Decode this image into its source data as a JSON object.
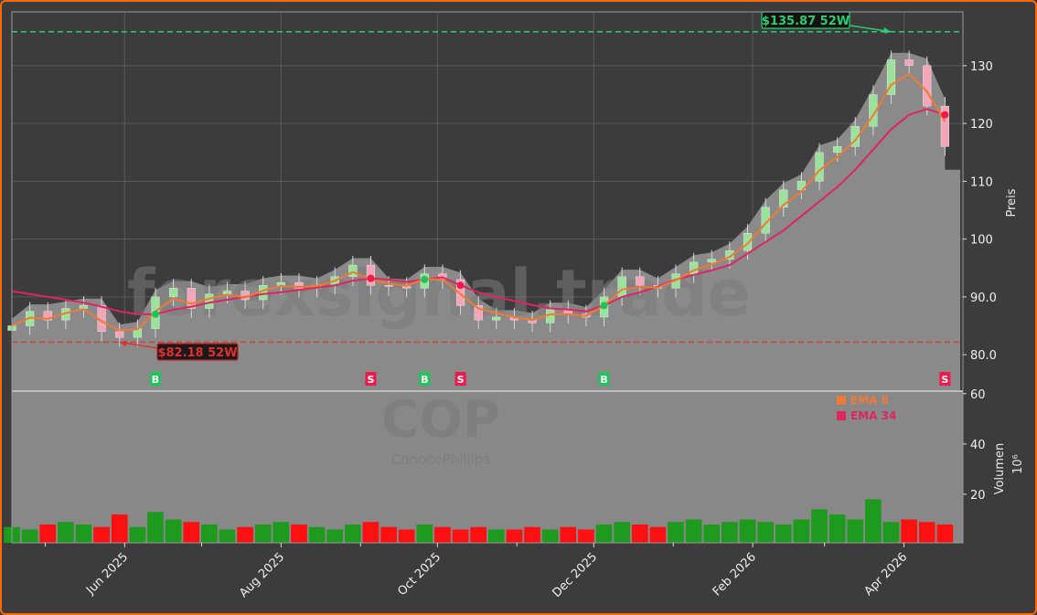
{
  "chart_data": {
    "type": "candlestick",
    "symbol": "COP",
    "company": "ConocoPhillips",
    "watermark": "forexsignal.trade",
    "ylabel": "Preis",
    "volume_label": "Volumen",
    "volume_unit": "10⁶",
    "xlim": [
      "2025-04-18",
      "2026-04-24"
    ],
    "ylim": [
      73.7,
      139.3
    ],
    "volume_ylim": [
      0,
      61
    ],
    "price_ticks": [
      80,
      90,
      100,
      110,
      120,
      130
    ],
    "price_tick_labels": [
      "80.0",
      "90.0",
      "100",
      "110",
      "120",
      "130"
    ],
    "volume_ticks": [
      20,
      40,
      60
    ],
    "volume_tick_labels": [
      "20",
      "40",
      "60"
    ],
    "date_ticks": [
      "2025-06-01",
      "2025-08-01",
      "2025-10-01",
      "2025-12-01",
      "2026-02-01",
      "2026-04-01"
    ],
    "date_tick_labels": [
      "Jun 2025",
      "Aug 2025",
      "Oct 2025",
      "Dec 2025",
      "Feb 2026",
      "Apr 2026"
    ],
    "grid": true,
    "colors": {
      "up": "#9be39b",
      "down": "#f2a6b8",
      "vol_up": "#1e9a1e",
      "vol_down": "#ff1010",
      "ema8": "#f07a35",
      "ema34": "#e0245e",
      "high": "#2ecc71",
      "low": "#e03030",
      "area": "#8a8a8a"
    },
    "start_date": "2025-04-18",
    "interval_days": 7,
    "close": [
      85,
      87.5,
      86,
      88,
      88.5,
      84,
      83,
      84.5,
      90,
      91.5,
      88,
      90.5,
      91,
      89.5,
      92,
      92.5,
      91.5,
      92,
      93.5,
      95.5,
      92,
      91.8,
      91.5,
      94,
      93,
      88.5,
      86,
      86.5,
      86,
      85.5,
      87.8,
      87,
      86.5,
      90,
      93.5,
      92,
      91.5,
      94,
      96,
      96.5,
      98,
      101,
      105.5,
      108.5,
      110,
      115,
      116,
      119.5,
      125,
      131,
      130,
      123,
      116
    ],
    "volume": [
      7,
      6,
      8,
      9,
      8,
      7,
      12,
      7,
      13,
      10,
      9,
      8,
      6,
      7,
      8,
      9,
      8,
      7,
      6,
      8,
      9,
      7,
      6,
      8,
      7,
      6,
      7,
      6,
      6,
      7,
      6,
      7,
      6,
      8,
      9,
      8,
      7,
      9,
      10,
      8,
      9,
      10,
      9,
      8,
      10,
      14,
      12,
      10,
      18,
      9,
      10,
      9,
      8
    ],
    "ema8": [
      85,
      86.4,
      86.2,
      87.2,
      87.9,
      85.8,
      84.2,
      84.4,
      87.5,
      89.7,
      88.8,
      89.7,
      90.4,
      89.9,
      91.1,
      91.9,
      91.7,
      91.9,
      92.8,
      94.3,
      93,
      92.3,
      91.9,
      93.1,
      93,
      90.5,
      88,
      87.2,
      86.5,
      86,
      87,
      87,
      86.7,
      88.5,
      91.3,
      91.7,
      91.6,
      92.9,
      94.6,
      95.6,
      96.9,
      99.2,
      102.7,
      105.9,
      108.2,
      111.9,
      114.2,
      117.1,
      121.4,
      126.7,
      128.5,
      125.5,
      120.3
    ],
    "ema34": [
      91,
      90.5,
      90,
      89.5,
      89,
      88.3,
      87.5,
      87,
      87,
      87.8,
      88.3,
      89,
      89.5,
      90,
      90.5,
      90.8,
      91.2,
      91.6,
      92,
      92.8,
      93.2,
      93,
      92.6,
      93,
      93.4,
      92,
      90.8,
      90,
      89.3,
      88.6,
      88,
      87.8,
      87.5,
      88.5,
      90,
      90.8,
      91.8,
      93,
      93.8,
      94.6,
      95.5,
      97.5,
      99.5,
      101.5,
      104,
      106.5,
      109,
      112,
      115.5,
      119,
      121.5,
      122.5,
      121.5
    ],
    "signals": [
      {
        "index": 8,
        "type": "B"
      },
      {
        "index": 20,
        "type": "S"
      },
      {
        "index": 23,
        "type": "B"
      },
      {
        "index": 25,
        "type": "S"
      },
      {
        "index": 33,
        "type": "B"
      },
      {
        "index": 52,
        "type": "S"
      }
    ],
    "high_52w": {
      "value": 135.87,
      "label": "$135.87 52W",
      "date": "2026-03-27"
    },
    "low_52w": {
      "value": 82.18,
      "label": "$82.18 52W",
      "date": "2025-05-30"
    },
    "legend": {
      "position": "top-right of volume pane",
      "items": [
        "EMA 8",
        "EMA 34"
      ]
    }
  }
}
